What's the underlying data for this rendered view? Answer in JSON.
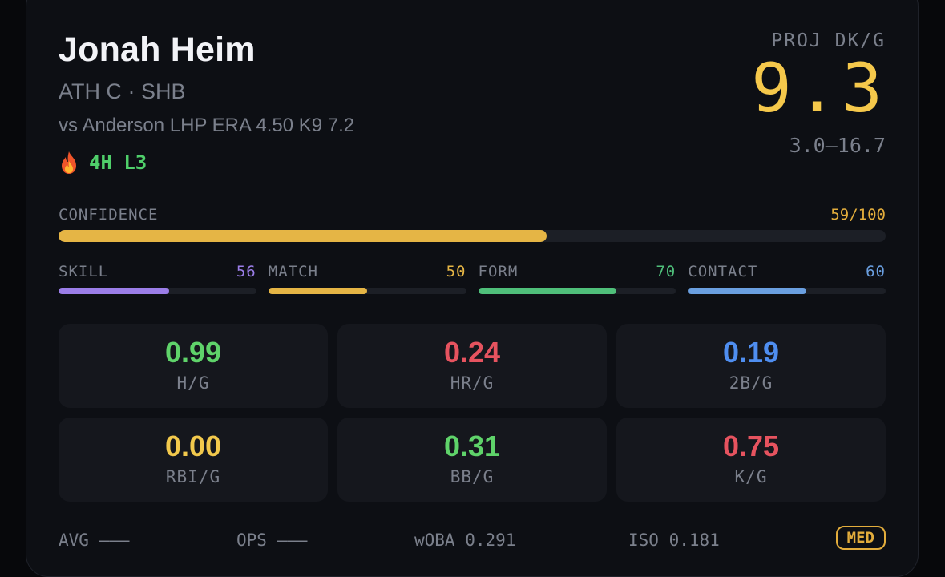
{
  "player": {
    "name": "Jonah Heim",
    "team_pos": "ATH C · SHB",
    "matchup": "vs Anderson LHP ERA 4.50 K9 7.2",
    "streak_icon": "fire-icon",
    "streak": "4H L3"
  },
  "projection": {
    "label": "PROJ DK/G",
    "value": "9.3",
    "range": "3.0–16.7"
  },
  "confidence": {
    "label": "CONFIDENCE",
    "value_text": "59/100",
    "value": 59,
    "color": "#e5b545"
  },
  "subscores": [
    {
      "label": "SKILL",
      "value_text": "56",
      "value": 56,
      "color": "#9b7ee8"
    },
    {
      "label": "MATCH",
      "value_text": "50",
      "value": 50,
      "color": "#e5b545"
    },
    {
      "label": "FORM",
      "value_text": "70",
      "value": 70,
      "color": "#4fbf7a"
    },
    {
      "label": "CONTACT",
      "value_text": "60",
      "value": 60,
      "color": "#6a9fe0"
    }
  ],
  "stats": [
    {
      "value": "0.99",
      "label": "H/G",
      "color": "#5fd36a"
    },
    {
      "value": "0.24",
      "label": "HR/G",
      "color": "#e6535f"
    },
    {
      "value": "0.19",
      "label": "2B/G",
      "color": "#4f8ef0"
    },
    {
      "value": "0.00",
      "label": "RBI/G",
      "color": "#f2c94c"
    },
    {
      "value": "0.31",
      "label": "BB/G",
      "color": "#5fd36a"
    },
    {
      "value": "0.75",
      "label": "K/G",
      "color": "#e6535f"
    }
  ],
  "footer": {
    "avg": "AVG ———",
    "ops": "OPS ———",
    "woba": "wOBA 0.291",
    "iso": "ISO 0.181",
    "badge": "MED"
  }
}
